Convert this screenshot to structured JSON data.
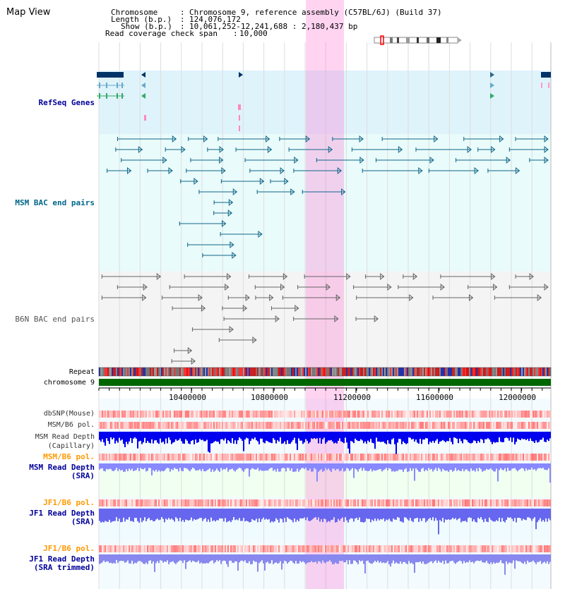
{
  "page_title": "Map View",
  "header": {
    "chromosome_key": "Chromosome",
    "chromosome_value": "Chromosome 9, reference assembly (C57BL/6J) (Build 37)",
    "length_key": "Length (b.p.)",
    "length_value": "124,076,172",
    "show_key": "Show (b.p.)",
    "show_value": "10,061,252-12,241,688 : 2,180,437 bp",
    "coverage_key": "Read coverage check span",
    "coverage_value": "10,000"
  },
  "tracks": {
    "refseq": "RefSeq Genes",
    "msm_bac": "MSM BAC end pairs",
    "b6n_bac": "B6N BAC end pairs",
    "repeat": "Repeat",
    "chromosome": "chromosome 9",
    "dbsnp": "dbSNP(Mouse)",
    "msm_b6_pol_1": "MSM/B6 pol.",
    "msm_depth_cap_1": "MSM Read Depth",
    "msm_depth_cap_2": "(Capillary)",
    "msm_b6_pol_2": "MSM/B6 pol.",
    "msm_depth_sra_1": "MSM Read Depth",
    "msm_depth_sra_2": "(SRA)",
    "jf1_b6_pol_1": "JF1/B6 pol.",
    "jf1_depth_sra_1": "JF1 Read Depth",
    "jf1_depth_sra_2": "(SRA)",
    "jf1_b6_pol_2": "JF1/B6 pol.",
    "jf1_depth_trim_1": "JF1 Read Depth",
    "jf1_depth_trim_2": "(SRA trimmed)"
  },
  "ruler": {
    "ticks": [
      "10400000",
      "10800000",
      "11200000",
      "11600000",
      "12000000"
    ]
  },
  "colors": {
    "refseq_label": "#000099",
    "msm_label": "#006688",
    "b6n_label": "#555555",
    "orange_label": "#ff9900",
    "highlight": "#ff66cc"
  }
}
